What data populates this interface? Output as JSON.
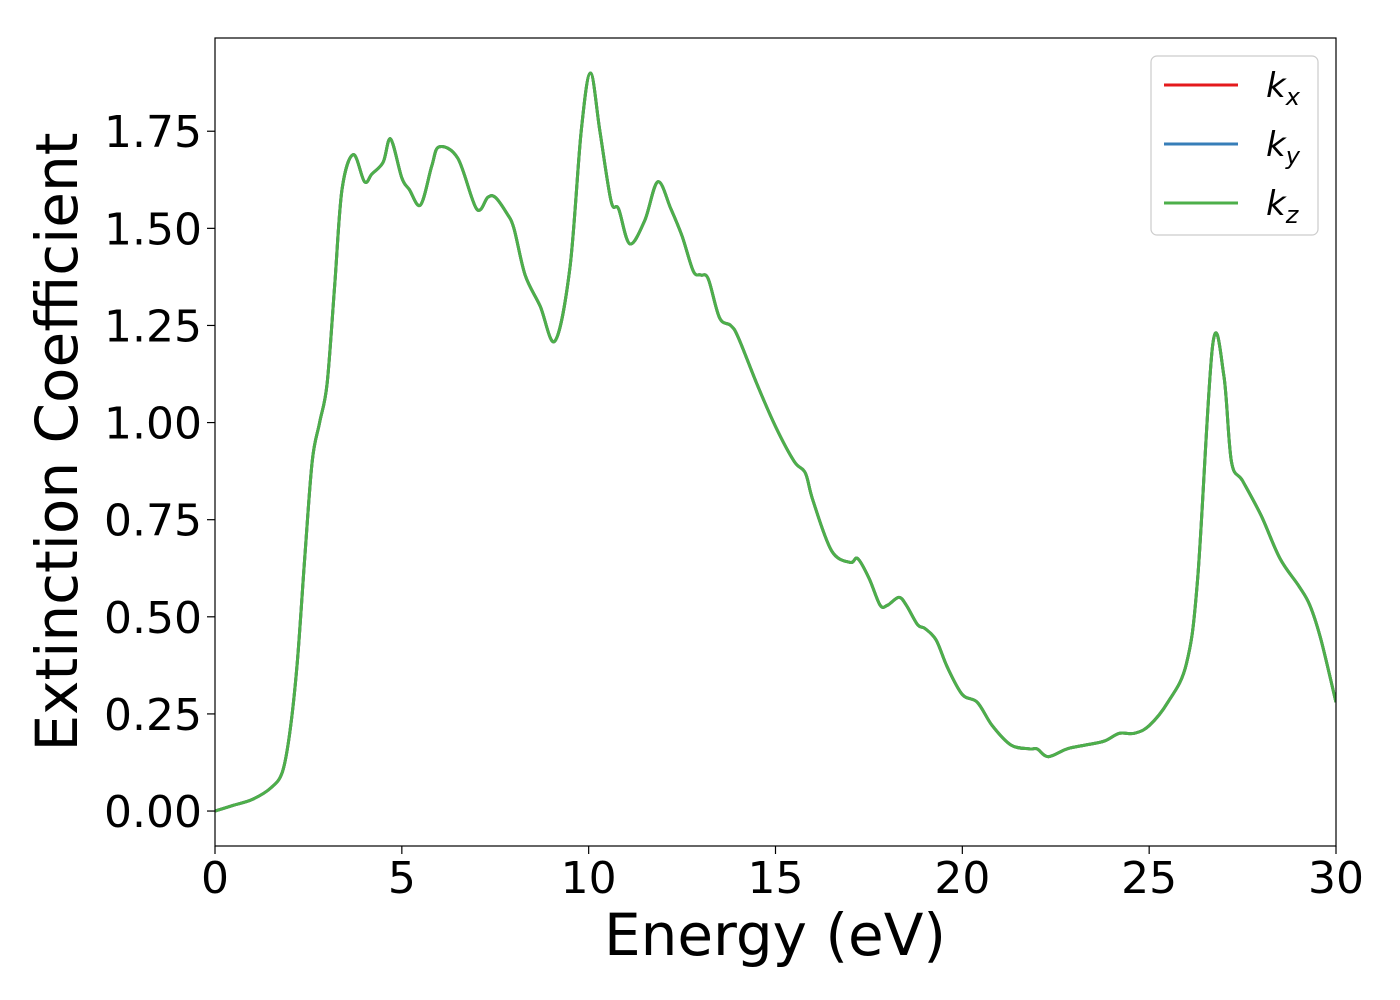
{
  "chart_data": {
    "type": "line",
    "xlabel": "Energy (eV)",
    "ylabel": "Extinction Coefficient",
    "xlim": [
      0,
      30
    ],
    "ylim": [
      -0.09,
      1.99
    ],
    "xticks": [
      0,
      5,
      10,
      15,
      20,
      25,
      30
    ],
    "xtick_labels": [
      "0",
      "5",
      "10",
      "15",
      "20",
      "25",
      "30"
    ],
    "yticks": [
      0.0,
      0.25,
      0.5,
      0.75,
      1.0,
      1.25,
      1.5,
      1.75
    ],
    "ytick_labels": [
      "0.00",
      "0.25",
      "0.50",
      "0.75",
      "1.00",
      "1.25",
      "1.50",
      "1.75"
    ],
    "grid": false,
    "legend_position": "top-right",
    "x": [
      0,
      0.5,
      1.0,
      1.5,
      1.8,
      2.0,
      2.2,
      2.4,
      2.6,
      2.8,
      3.0,
      3.2,
      3.4,
      3.7,
      4.0,
      4.2,
      4.5,
      4.7,
      5.0,
      5.2,
      5.5,
      5.8,
      6.0,
      6.5,
      7.0,
      7.3,
      7.5,
      7.8,
      8.0,
      8.3,
      8.7,
      9.1,
      9.5,
      9.8,
      10.05,
      10.3,
      10.6,
      10.8,
      11.1,
      11.5,
      11.85,
      12.2,
      12.5,
      12.8,
      13.0,
      13.2,
      13.5,
      13.8,
      14.0,
      14.5,
      15.0,
      15.5,
      15.8,
      16.0,
      16.5,
      17.0,
      17.2,
      17.5,
      17.8,
      18.0,
      18.3,
      18.5,
      18.8,
      19.0,
      19.3,
      19.6,
      20.0,
      20.4,
      20.8,
      21.3,
      21.8,
      22.0,
      22.3,
      22.8,
      23.3,
      23.8,
      24.2,
      24.6,
      25.0,
      25.5,
      26.0,
      26.3,
      26.7,
      27.0,
      27.2,
      27.5,
      28.0,
      28.5,
      29.0,
      29.3,
      29.6,
      30.0
    ],
    "series": [
      {
        "name": "k_x",
        "label_base": "k",
        "label_sub": "x",
        "color": "#e41a1c",
        "y": [
          0.0,
          0.015,
          0.03,
          0.06,
          0.1,
          0.2,
          0.38,
          0.65,
          0.9,
          1.0,
          1.1,
          1.35,
          1.6,
          1.69,
          1.62,
          1.64,
          1.67,
          1.73,
          1.63,
          1.6,
          1.56,
          1.66,
          1.71,
          1.68,
          1.55,
          1.58,
          1.58,
          1.54,
          1.5,
          1.38,
          1.3,
          1.21,
          1.4,
          1.75,
          1.9,
          1.75,
          1.57,
          1.55,
          1.46,
          1.52,
          1.62,
          1.55,
          1.48,
          1.39,
          1.38,
          1.37,
          1.27,
          1.25,
          1.22,
          1.1,
          0.99,
          0.9,
          0.87,
          0.8,
          0.67,
          0.64,
          0.65,
          0.6,
          0.53,
          0.53,
          0.55,
          0.53,
          0.48,
          0.47,
          0.44,
          0.37,
          0.3,
          0.28,
          0.22,
          0.17,
          0.16,
          0.16,
          0.14,
          0.16,
          0.17,
          0.18,
          0.2,
          0.2,
          0.22,
          0.28,
          0.38,
          0.6,
          1.2,
          1.12,
          0.9,
          0.85,
          0.76,
          0.65,
          0.58,
          0.53,
          0.44,
          0.28
        ]
      },
      {
        "name": "k_y",
        "label_base": "k",
        "label_sub": "y",
        "color": "#377eb8",
        "y": [
          0.0,
          0.015,
          0.03,
          0.06,
          0.1,
          0.2,
          0.38,
          0.65,
          0.9,
          1.0,
          1.1,
          1.35,
          1.6,
          1.69,
          1.62,
          1.64,
          1.67,
          1.73,
          1.63,
          1.6,
          1.56,
          1.66,
          1.71,
          1.68,
          1.55,
          1.58,
          1.58,
          1.54,
          1.5,
          1.38,
          1.3,
          1.21,
          1.4,
          1.75,
          1.9,
          1.75,
          1.57,
          1.55,
          1.46,
          1.52,
          1.62,
          1.55,
          1.48,
          1.39,
          1.38,
          1.37,
          1.27,
          1.25,
          1.22,
          1.1,
          0.99,
          0.9,
          0.87,
          0.8,
          0.67,
          0.64,
          0.65,
          0.6,
          0.53,
          0.53,
          0.55,
          0.53,
          0.48,
          0.47,
          0.44,
          0.37,
          0.3,
          0.28,
          0.22,
          0.17,
          0.16,
          0.16,
          0.14,
          0.16,
          0.17,
          0.18,
          0.2,
          0.2,
          0.22,
          0.28,
          0.38,
          0.6,
          1.2,
          1.12,
          0.9,
          0.85,
          0.76,
          0.65,
          0.58,
          0.53,
          0.44,
          0.28
        ]
      },
      {
        "name": "k_z",
        "label_base": "k",
        "label_sub": "z",
        "color": "#4daf4a",
        "y": [
          0.0,
          0.015,
          0.03,
          0.06,
          0.1,
          0.2,
          0.38,
          0.65,
          0.9,
          1.0,
          1.1,
          1.35,
          1.6,
          1.69,
          1.62,
          1.64,
          1.67,
          1.73,
          1.63,
          1.6,
          1.56,
          1.66,
          1.71,
          1.68,
          1.55,
          1.58,
          1.58,
          1.54,
          1.5,
          1.38,
          1.3,
          1.21,
          1.4,
          1.75,
          1.9,
          1.75,
          1.57,
          1.55,
          1.46,
          1.52,
          1.62,
          1.55,
          1.48,
          1.39,
          1.38,
          1.37,
          1.27,
          1.25,
          1.22,
          1.1,
          0.99,
          0.9,
          0.87,
          0.8,
          0.67,
          0.64,
          0.65,
          0.6,
          0.53,
          0.53,
          0.55,
          0.53,
          0.48,
          0.47,
          0.44,
          0.37,
          0.3,
          0.28,
          0.22,
          0.17,
          0.16,
          0.16,
          0.14,
          0.16,
          0.17,
          0.18,
          0.2,
          0.2,
          0.22,
          0.28,
          0.38,
          0.6,
          1.2,
          1.12,
          0.9,
          0.85,
          0.76,
          0.65,
          0.58,
          0.53,
          0.44,
          0.28
        ]
      }
    ]
  }
}
